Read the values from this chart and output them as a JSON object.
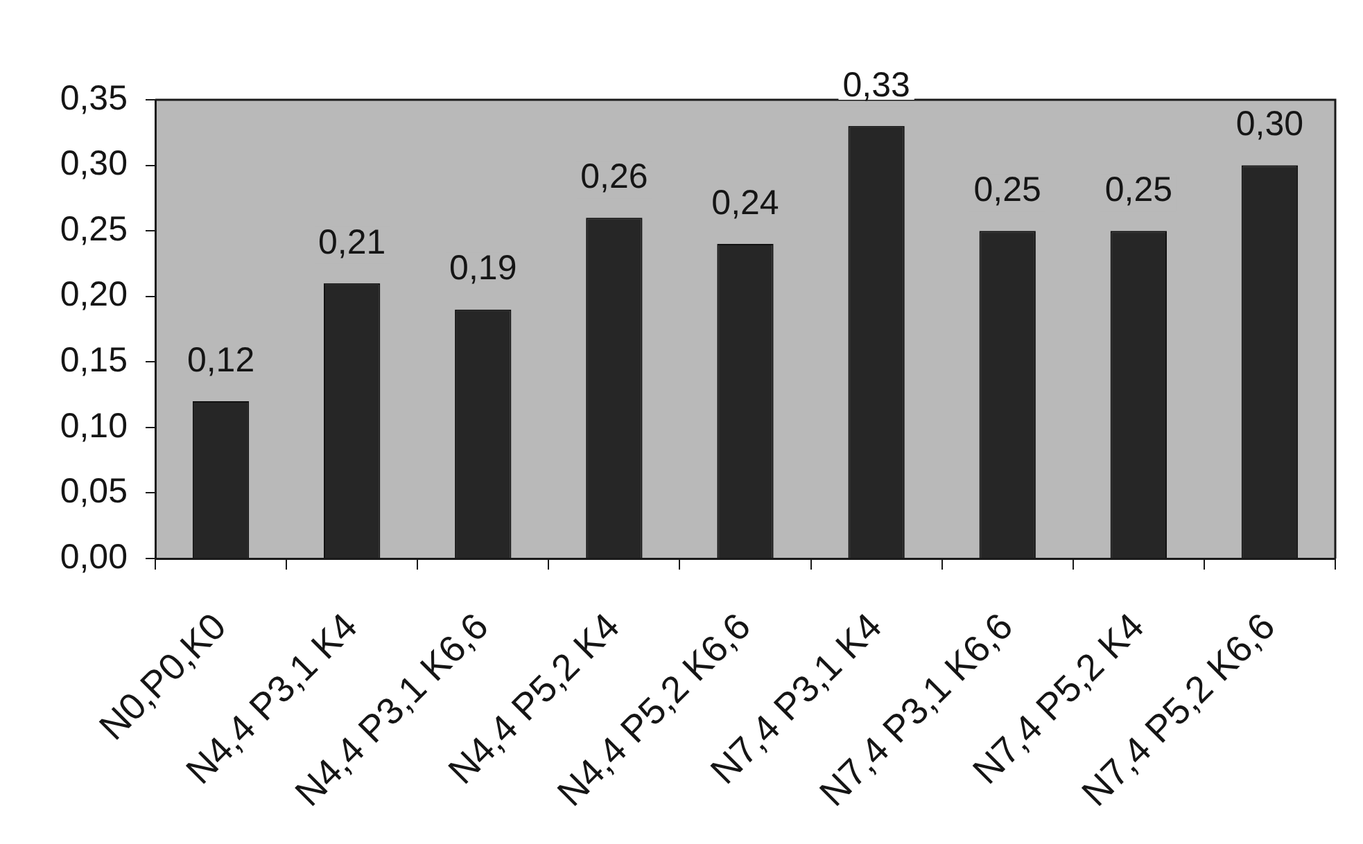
{
  "chart_data": {
    "type": "bar",
    "categories": [
      "N0,P0,K0",
      "N4,4 P3,1 K4",
      "N4,4 P3,1 K6,6",
      "N4,4 P5,2 K4",
      "N4,4 P5,2 K6,6",
      "N7,4 P3,1 K4",
      "N7,4 P3,1 K6,6",
      "N7,4 P5,2 K4",
      "N7,4 P5,2 K6,6"
    ],
    "values": [
      0.12,
      0.21,
      0.19,
      0.26,
      0.24,
      0.33,
      0.25,
      0.25,
      0.3
    ],
    "value_labels": [
      "0,12",
      "0,21",
      "0,19",
      "0,26",
      "0,24",
      "0,33",
      "0,25",
      "0,25",
      "0,30"
    ],
    "color": "#262626",
    "ylim": [
      0,
      0.35
    ],
    "yticks": [
      {
        "value": 0,
        "label": "0,00"
      },
      {
        "value": 0.05,
        "label": "0,05"
      },
      {
        "value": 0.1,
        "label": "0,10"
      },
      {
        "value": 0.15,
        "label": "0,15"
      },
      {
        "value": 0.2,
        "label": "0,20"
      },
      {
        "value": 0.25,
        "label": "0,25"
      },
      {
        "value": 0.3,
        "label": "0,30"
      },
      {
        "value": 0.35,
        "label": "0,35"
      }
    ]
  }
}
